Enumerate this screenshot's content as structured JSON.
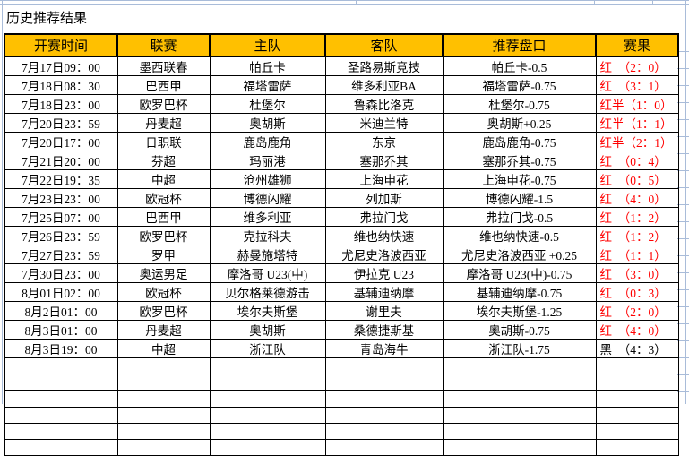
{
  "title": "历史推荐结果",
  "colors": {
    "header_bg": "#FFC000",
    "result_red": "#FF0000",
    "result_black": "#000000",
    "grid_blue": "#A9BCD9",
    "border_black": "#000000"
  },
  "table": {
    "columns": [
      {
        "key": "time",
        "label": "开赛时间"
      },
      {
        "key": "league",
        "label": "联赛"
      },
      {
        "key": "home",
        "label": "主队"
      },
      {
        "key": "away",
        "label": "客队"
      },
      {
        "key": "handicap",
        "label": "推荐盘口"
      },
      {
        "key": "result",
        "label": "赛果"
      }
    ],
    "rows": [
      {
        "time": "7月17日09：00",
        "league": "墨西联春",
        "home": "帕丘卡",
        "away": "圣路易斯竞技",
        "handicap": "帕丘卡-0.5",
        "result": "红　（2：0）",
        "result_color": "#FF0000"
      },
      {
        "time": "7月18日08：30",
        "league": "巴西甲",
        "home": "福塔雷萨",
        "away": "维多利亚BA",
        "handicap": "福塔雷萨-0.75",
        "result": "红　（3：1）",
        "result_color": "#FF0000"
      },
      {
        "time": "7月18日23：00",
        "league": "欧罗巴杯",
        "home": "杜堡尔",
        "away": "鲁森比洛克",
        "handicap": "杜堡尔-0.75",
        "result": "红半（1：0）",
        "result_color": "#FF0000"
      },
      {
        "time": "7月20日23：59",
        "league": "丹麦超",
        "home": "奥胡斯",
        "away": "米迪兰特",
        "handicap": "奥胡斯+0.25",
        "result": "红半（1：1）",
        "result_color": "#FF0000"
      },
      {
        "time": "7月20日17：00",
        "league": "日职联",
        "home": "鹿岛鹿角",
        "away": "东京",
        "handicap": "鹿岛鹿角-0.75",
        "result": "红半（2：1）",
        "result_color": "#FF0000"
      },
      {
        "time": "7月21日20：00",
        "league": "芬超",
        "home": "玛丽港",
        "away": "塞那乔其",
        "handicap": "塞那乔其-0.75",
        "result": "红　（0：4）",
        "result_color": "#FF0000"
      },
      {
        "time": "7月22日19：35",
        "league": "中超",
        "home": "沧州雄狮",
        "away": "上海申花",
        "handicap": "上海申花-0.75",
        "result": "红　（0：5）",
        "result_color": "#FF0000"
      },
      {
        "time": "7月23日23：00",
        "league": "欧冠杯",
        "home": "博德闪耀",
        "away": "列加斯",
        "handicap": "博德闪耀-1.5",
        "result": "红　（4：0）",
        "result_color": "#FF0000"
      },
      {
        "time": "7月25日07：00",
        "league": "巴西甲",
        "home": "维多利亚",
        "away": "弗拉门戈",
        "handicap": "弗拉门戈-0.5",
        "result": "红　（1：2）",
        "result_color": "#FF0000"
      },
      {
        "time": "7月26日23：59",
        "league": "欧罗巴杯",
        "home": "克拉科夫",
        "away": "维也纳快速",
        "handicap": "维也纳快速-0.5",
        "result": "红　（1：2）",
        "result_color": "#FF0000"
      },
      {
        "time": "7月27日23：59",
        "league": "罗甲",
        "home": "赫曼施塔特",
        "away": "尤尼史洛波西亚",
        "handicap": "尤尼史洛波西亚 +0.25",
        "result": "红　（1：1）",
        "result_color": "#FF0000"
      },
      {
        "time": "7月30日23：00",
        "league": "奥运男足",
        "home": "摩洛哥 U23(中)",
        "away": "伊拉克 U23",
        "handicap": "摩洛哥 U23(中)-0.75",
        "result": "红　（3：0）",
        "result_color": "#FF0000"
      },
      {
        "time": "8月01日02：00",
        "league": "欧冠杯",
        "home": "贝尔格莱德游击",
        "away": "基辅迪纳摩",
        "handicap": "基辅迪纳摩-0.75",
        "result": "红　（0：3）",
        "result_color": "#FF0000"
      },
      {
        "time": "8月2日01：00",
        "league": "欧罗巴杯",
        "home": "埃尔夫斯堡",
        "away": "谢里夫",
        "handicap": "埃尔夫斯堡-1.25",
        "result": "红　（2：0）",
        "result_color": "#FF0000"
      },
      {
        "time": "8月3日01：00",
        "league": "丹麦超",
        "home": "奥胡斯",
        "away": "桑德捷斯基",
        "handicap": "奥胡斯-0.75",
        "result": "红　（4：0）",
        "result_color": "#FF0000"
      },
      {
        "time": "8月3日19：00",
        "league": "中超",
        "home": "浙江队",
        "away": "青岛海牛",
        "handicap": "浙江队-1.75",
        "result": "黑　（4：3）",
        "result_color": "#000000"
      }
    ],
    "empty_row_count": 6
  }
}
